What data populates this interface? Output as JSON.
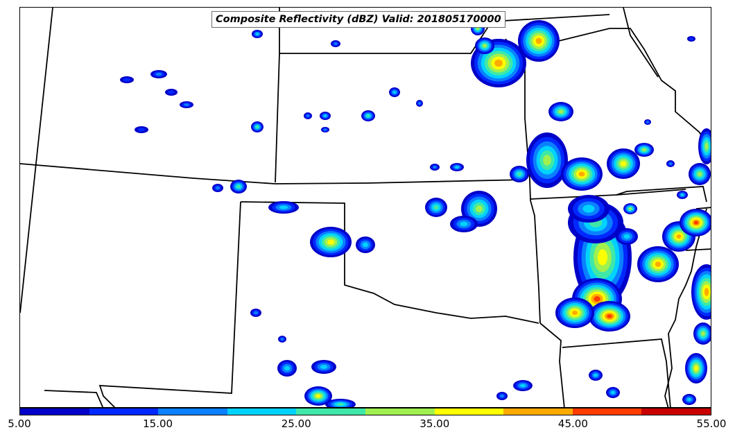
{
  "title": "Composite Reflectivity (dBZ) Valid: 201805170000",
  "colorbar": {
    "colors": [
      "#0000c8",
      "#0028ff",
      "#0a80ff",
      "#00d2ff",
      "#3fe8a8",
      "#a0f050",
      "#ffff00",
      "#ffaa00",
      "#ff3c00",
      "#c80000"
    ],
    "tick_labels": [
      "5.00",
      "15.00",
      "25.00",
      "35.00",
      "45.00",
      "55.00"
    ],
    "unit": "dBZ",
    "range": [
      5,
      55
    ]
  },
  "map": {
    "features": [
      "state-borders",
      "reflectivity-cells"
    ]
  }
}
